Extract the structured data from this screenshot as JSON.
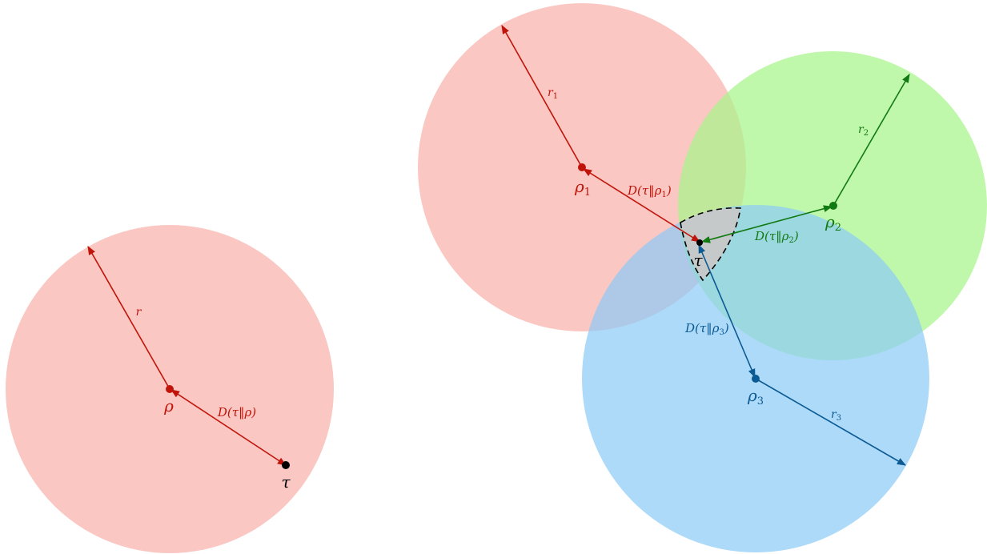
{
  "colors": {
    "red_fill": "#f8b4ad",
    "green_fill": "#a8f58a",
    "blue_fill": "#8ccbf7",
    "intersection_fill": "#c8c8c8",
    "red": "#c0140a",
    "green": "#127a12",
    "blue": "#0b5a94",
    "black": "#000000"
  },
  "left": {
    "center_label": "ρ",
    "radius_label": "r",
    "distance_label": "D(τ‖ρ)",
    "point_label": "τ"
  },
  "right": {
    "point_label": "τ",
    "circles": [
      {
        "center_label": "ρ",
        "center_sub": "1",
        "radius_label": "r",
        "radius_sub": "1",
        "distance_label": "D(τ‖ρ",
        "distance_sub": "1",
        "distance_close": ")"
      },
      {
        "center_label": "ρ",
        "center_sub": "2",
        "radius_label": "r",
        "radius_sub": "2",
        "distance_label": "D(τ‖ρ",
        "distance_sub": "2",
        "distance_close": ")"
      },
      {
        "center_label": "ρ",
        "center_sub": "3",
        "radius_label": "r",
        "radius_sub": "3",
        "distance_label": "D(τ‖ρ",
        "distance_sub": "3",
        "distance_close": ")"
      }
    ]
  }
}
